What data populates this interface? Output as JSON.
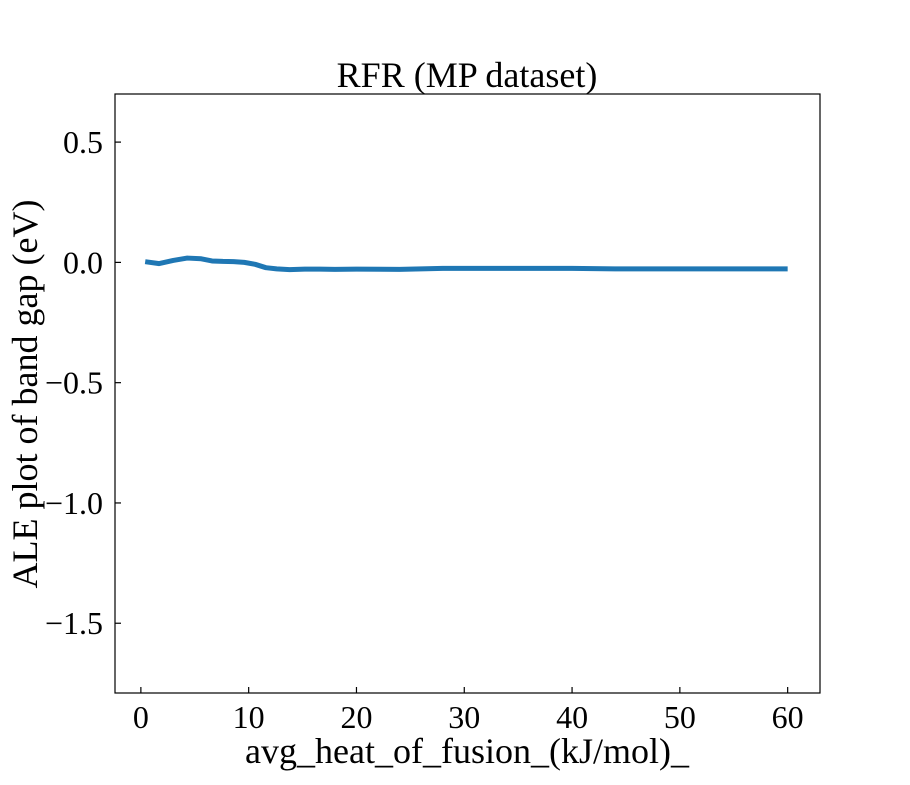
{
  "chart_data": {
    "type": "line",
    "title": "RFR (MP dataset)",
    "xlabel": "avg_heat_of_fusion_(kJ/mol)_",
    "ylabel": "ALE plot of band gap (eV)",
    "xlim": [
      -2.4,
      63.0
    ],
    "ylim": [
      -1.79,
      0.7
    ],
    "x_ticks": [
      0,
      10,
      20,
      30,
      40,
      50,
      60
    ],
    "x_tick_labels": [
      "0",
      "10",
      "20",
      "30",
      "40",
      "50",
      "60"
    ],
    "y_ticks": [
      0.5,
      0.0,
      -0.5,
      -1.0,
      -1.5
    ],
    "y_tick_labels": [
      "0.5",
      "0.0",
      "−0.5",
      "−1.0",
      "−1.5"
    ],
    "grid": false,
    "legend": "none",
    "series": [
      {
        "color": "#1f77b4",
        "x": [
          0.4,
          1.7,
          3.0,
          4.3,
          5.6,
          6.6,
          7.6,
          8.6,
          9.6,
          10.6,
          11.6,
          12.6,
          13.8,
          15.2,
          16.6,
          18.0,
          20.0,
          24.0,
          28.0,
          32.0,
          36.0,
          40.0,
          42.0,
          44.0,
          48.0,
          52.0,
          56.0,
          60.0
        ],
        "y": [
          0.003,
          -0.005,
          0.008,
          0.018,
          0.015,
          0.006,
          0.004,
          0.003,
          0.0,
          -0.008,
          -0.022,
          -0.027,
          -0.03,
          -0.028,
          -0.028,
          -0.029,
          -0.028,
          -0.029,
          -0.025,
          -0.025,
          -0.025,
          -0.025,
          -0.026,
          -0.027,
          -0.027,
          -0.027,
          -0.027,
          -0.027
        ]
      }
    ]
  }
}
